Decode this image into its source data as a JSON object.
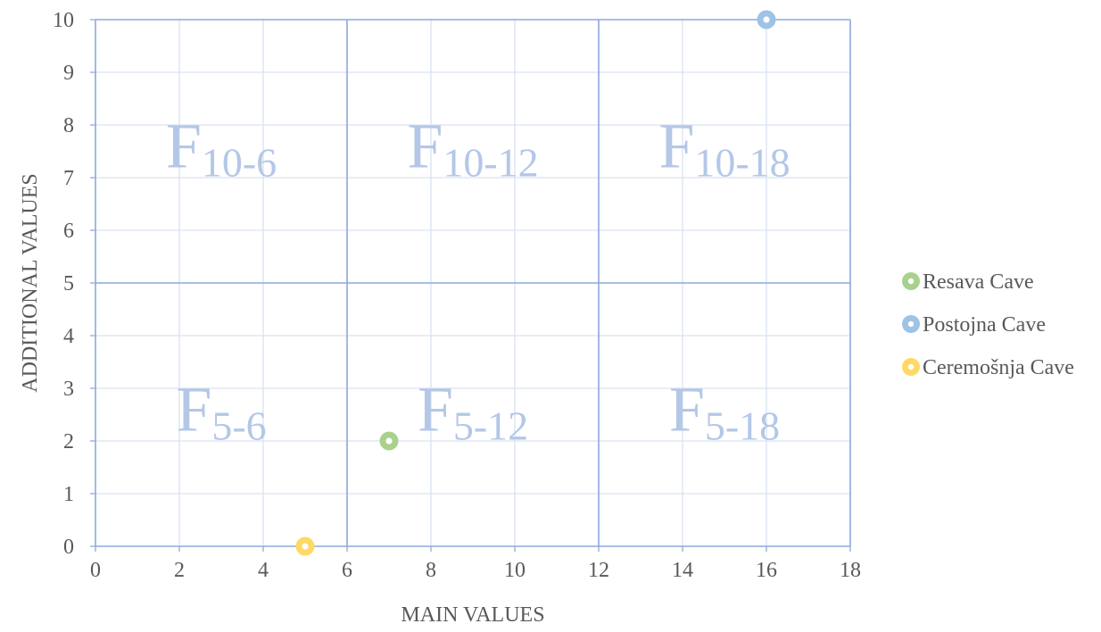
{
  "chart_data": {
    "type": "scatter",
    "xlabel": "MAIN VALUES",
    "ylabel": "ADDITIONAL VALUES",
    "xlim": [
      0,
      18
    ],
    "ylim": [
      0,
      10
    ],
    "x_ticks": [
      0,
      2,
      4,
      6,
      8,
      10,
      12,
      14,
      16,
      18
    ],
    "y_ticks": [
      0,
      1,
      2,
      3,
      4,
      5,
      6,
      7,
      8,
      9,
      10
    ],
    "grid": true,
    "legend_position": "right",
    "dividers": {
      "x": [
        6,
        12
      ],
      "y": [
        5
      ]
    },
    "series": [
      {
        "name": "Resava Cave",
        "color": "#a9d18e",
        "points": [
          {
            "x": 7,
            "y": 2
          }
        ]
      },
      {
        "name": "Postojna Cave",
        "color": "#9dc3e6",
        "points": [
          {
            "x": 16,
            "y": 10
          }
        ]
      },
      {
        "name": "Ceremošnja Cave",
        "color": "#ffd966",
        "points": [
          {
            "x": 5,
            "y": 0
          }
        ]
      }
    ],
    "zones": [
      {
        "base": "F",
        "sub": "10-6",
        "x": 3,
        "y": 7.5
      },
      {
        "base": "F",
        "sub": "10-12",
        "x": 9,
        "y": 7.5
      },
      {
        "base": "F",
        "sub": "10-18",
        "x": 15,
        "y": 7.5
      },
      {
        "base": "F",
        "sub": "5-6",
        "x": 3,
        "y": 2.5
      },
      {
        "base": "F",
        "sub": "5-12",
        "x": 9,
        "y": 2.5
      },
      {
        "base": "F",
        "sub": "5-18",
        "x": 15,
        "y": 2.5
      }
    ],
    "colors": {
      "grid": "#d9e2f1",
      "axis": "#8faadc",
      "zone_text": "#b4c7e7",
      "text": "#595959"
    }
  }
}
